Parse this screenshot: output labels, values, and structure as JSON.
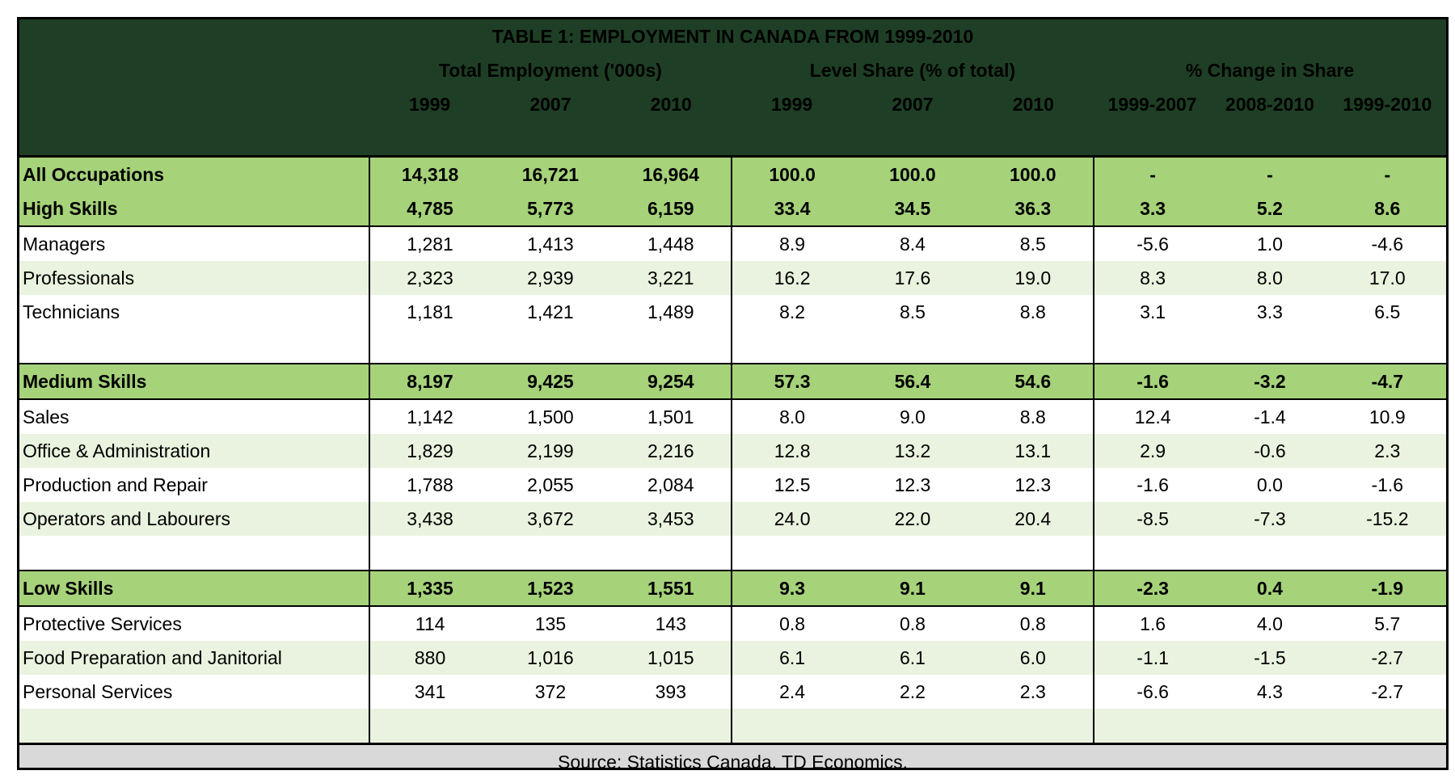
{
  "chart_data": {
    "type": "table",
    "title": "TABLE 1: EMPLOYMENT IN CANADA FROM 1999-2010",
    "column_groups": [
      "Total Employment ('000s)",
      "Level Share (% of total)",
      "% Change in Share"
    ],
    "years": [
      "1999",
      "2007",
      "2010",
      "1999",
      "2007",
      "2010",
      "1999-2007",
      "2008-2010",
      "1999-2010"
    ],
    "rows": [
      {
        "label": "All Occupations",
        "values": [
          "14,318",
          "16,721",
          "16,964",
          "100.0",
          "100.0",
          "100.0",
          "-",
          "-",
          "-"
        ]
      },
      {
        "label": "High Skills",
        "values": [
          "4,785",
          "5,773",
          "6,159",
          "33.4",
          "34.5",
          "36.3",
          "3.3",
          "5.2",
          "8.6"
        ]
      },
      {
        "label": "Managers",
        "values": [
          "1,281",
          "1,413",
          "1,448",
          "8.9",
          "8.4",
          "8.5",
          "-5.6",
          "1.0",
          "-4.6"
        ]
      },
      {
        "label": "Professionals",
        "values": [
          "2,323",
          "2,939",
          "3,221",
          "16.2",
          "17.6",
          "19.0",
          "8.3",
          "8.0",
          "17.0"
        ]
      },
      {
        "label": "Technicians",
        "values": [
          "1,181",
          "1,421",
          "1,489",
          "8.2",
          "8.5",
          "8.8",
          "3.1",
          "3.3",
          "6.5"
        ]
      },
      {
        "label": "Medium Skills",
        "values": [
          "8,197",
          "9,425",
          "9,254",
          "57.3",
          "56.4",
          "54.6",
          "-1.6",
          "-3.2",
          "-4.7"
        ]
      },
      {
        "label": "Sales",
        "values": [
          "1,142",
          "1,500",
          "1,501",
          "8.0",
          "9.0",
          "8.8",
          "12.4",
          "-1.4",
          "10.9"
        ]
      },
      {
        "label": "Office & Administration",
        "values": [
          "1,829",
          "2,199",
          "2,216",
          "12.8",
          "13.2",
          "13.1",
          "2.9",
          "-0.6",
          "2.3"
        ]
      },
      {
        "label": "Production and Repair",
        "values": [
          "1,788",
          "2,055",
          "2,084",
          "12.5",
          "12.3",
          "12.3",
          "-1.6",
          "0.0",
          "-1.6"
        ]
      },
      {
        "label": "Operators and Labourers",
        "values": [
          "3,438",
          "3,672",
          "3,453",
          "24.0",
          "22.0",
          "20.4",
          "-8.5",
          "-7.3",
          "-15.2"
        ]
      },
      {
        "label": "Low Skills",
        "values": [
          "1,335",
          "1,523",
          "1,551",
          "9.3",
          "9.1",
          "9.1",
          "-2.3",
          "0.4",
          "-1.9"
        ]
      },
      {
        "label": "Protective Services",
        "values": [
          "114",
          "135",
          "143",
          "0.8",
          "0.8",
          "0.8",
          "1.6",
          "4.0",
          "5.7"
        ]
      },
      {
        "label": "Food Preparation and Janitorial",
        "values": [
          "880",
          "1,016",
          "1,015",
          "6.1",
          "6.1",
          "6.0",
          "-1.1",
          "-1.5",
          "-2.7"
        ]
      },
      {
        "label": "Personal Services",
        "values": [
          "341",
          "372",
          "393",
          "2.4",
          "2.2",
          "2.3",
          "-6.6",
          "4.3",
          "-2.7"
        ]
      }
    ],
    "source": "Source: Statistics Canada, TD Economics."
  },
  "colors": {
    "header_bg": "#1e3f25",
    "subtotal_bg": "#a6d27a",
    "alt_row_bg": "#eaf3df",
    "footer_bg": "#d9d9d9"
  }
}
